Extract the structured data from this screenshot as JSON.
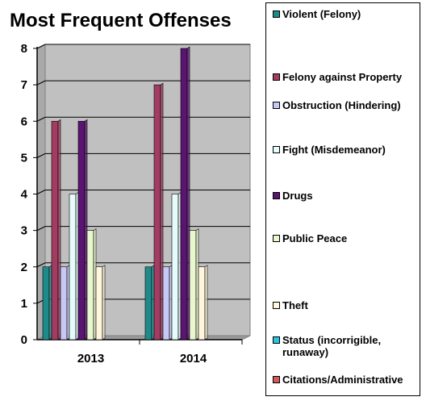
{
  "chart_data": {
    "type": "bar",
    "title": "Most Frequent Offenses",
    "categories": [
      "2013",
      "2014"
    ],
    "ylim": [
      0,
      8
    ],
    "yticks": [
      "0",
      "1",
      "2",
      "3",
      "4",
      "5",
      "6",
      "7",
      "8"
    ],
    "grid": true,
    "legend_position": "right",
    "series": [
      {
        "name": "Violent (Felony)",
        "values": [
          2,
          2
        ],
        "color": "#1f8a8a"
      },
      {
        "name": "Felony against Property",
        "values": [
          6,
          7
        ],
        "color": "#a33c62"
      },
      {
        "name": "Obstruction (Hindering)",
        "values": [
          2,
          2
        ],
        "color": "#c8c8f5"
      },
      {
        "name": "Fight (Misdemeanor)",
        "values": [
          4,
          4
        ],
        "color": "#e6fbfb"
      },
      {
        "name": "Drugs",
        "values": [
          6,
          8
        ],
        "color": "#5a1472"
      },
      {
        "name": "Public Peace",
        "values": [
          3,
          3
        ],
        "color": "#e9f7cf"
      },
      {
        "name": "Theft",
        "values": [
          2,
          2
        ],
        "color": "#fff6dc"
      },
      {
        "name": "Status (incorrigible, runaway)",
        "values": [
          0,
          0
        ],
        "color": "#29c5e0"
      },
      {
        "name": "Citations/Administrative",
        "values": [
          0,
          0
        ],
        "color": "#d25a5a"
      }
    ]
  }
}
